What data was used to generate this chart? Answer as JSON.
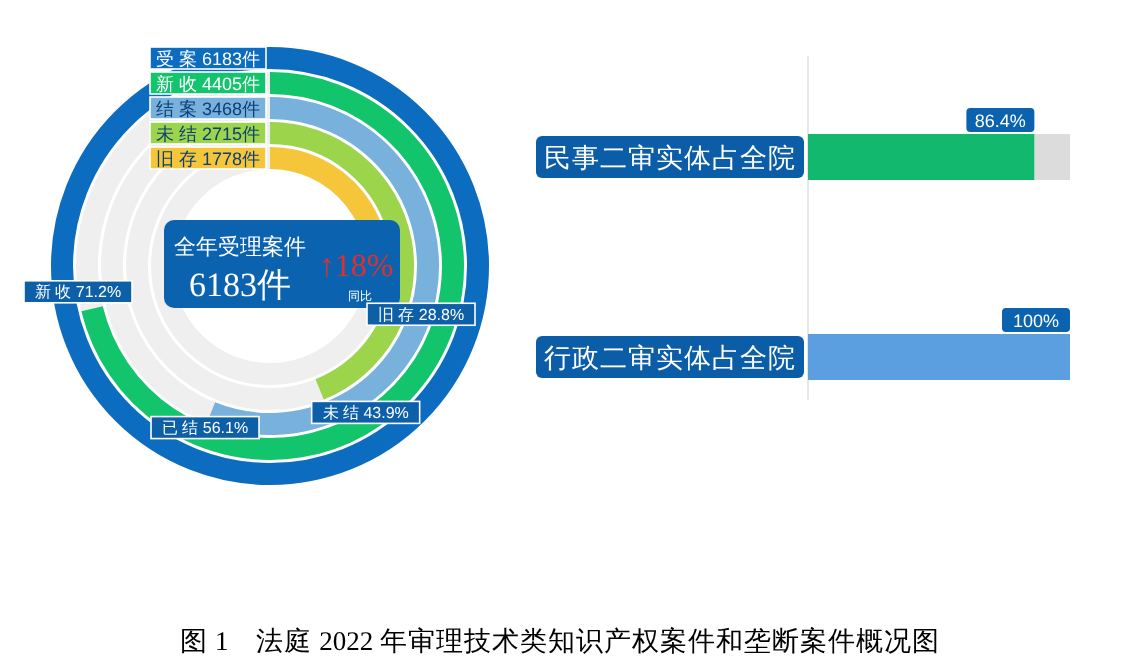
{
  "chart_data": [
    {
      "type": "other",
      "title": "图 1　法庭 2022 年审理技术类知识产权案件和垄断案件概况图",
      "categories": [
        "受 案",
        "新 收",
        "结 案",
        "未 结",
        "旧 存"
      ],
      "values": [
        6183,
        4405,
        3468,
        2715,
        1778
      ],
      "value_labels": [
        "6183件",
        "4405件",
        "3468件",
        "2715件",
        "1778件"
      ],
      "colors": [
        "#0b6cc0",
        "#12c46c",
        "#78b2dc",
        "#9cd44c",
        "#f5c53a"
      ],
      "annotations": [
        "全年受理案件",
        "6183件",
        "↑18%",
        "同比",
        "新 收 71.2%",
        "已 结 56.1%",
        "未 结 43.9%",
        "旧 存 28.8%"
      ]
    },
    {
      "type": "bar",
      "orientation": "horizontal",
      "categories": [
        "民事二审实体占全院",
        "行政二审实体占全院"
      ],
      "values": [
        86.4,
        100
      ],
      "value_labels": [
        "86.4%",
        "100%"
      ],
      "colors": [
        "#12b86e",
        "#5c9fe0"
      ],
      "xlim": [
        0,
        100
      ],
      "tick_labels": false
    }
  ]
}
